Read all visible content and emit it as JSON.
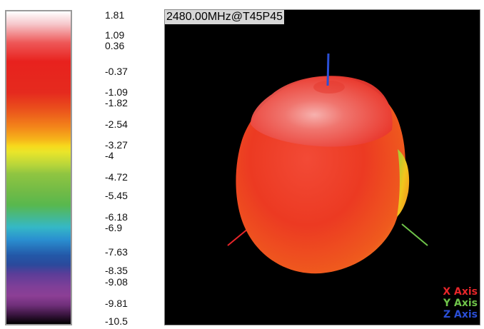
{
  "scale": {
    "ticks": [
      "1.81",
      "1.09",
      "0.36",
      "-0.37",
      "-1.09",
      "-1.82",
      "-2.54",
      "-3.27",
      "-4",
      "-4.72",
      "-5.45",
      "-6.18",
      "-6.9",
      "-7.63",
      "-8.35",
      "-9.08",
      "-9.81",
      "-10.5"
    ]
  },
  "viewport": {
    "title": "2480.00MHz@T45P45",
    "legend": {
      "x_axis": "X Axis",
      "y_axis": "Y Axis",
      "z_axis": "Z Axis"
    },
    "colors": {
      "x_axis": "#e8262a",
      "y_axis": "#6fc44a",
      "z_axis": "#2a4fd6",
      "background": "#000000"
    }
  }
}
